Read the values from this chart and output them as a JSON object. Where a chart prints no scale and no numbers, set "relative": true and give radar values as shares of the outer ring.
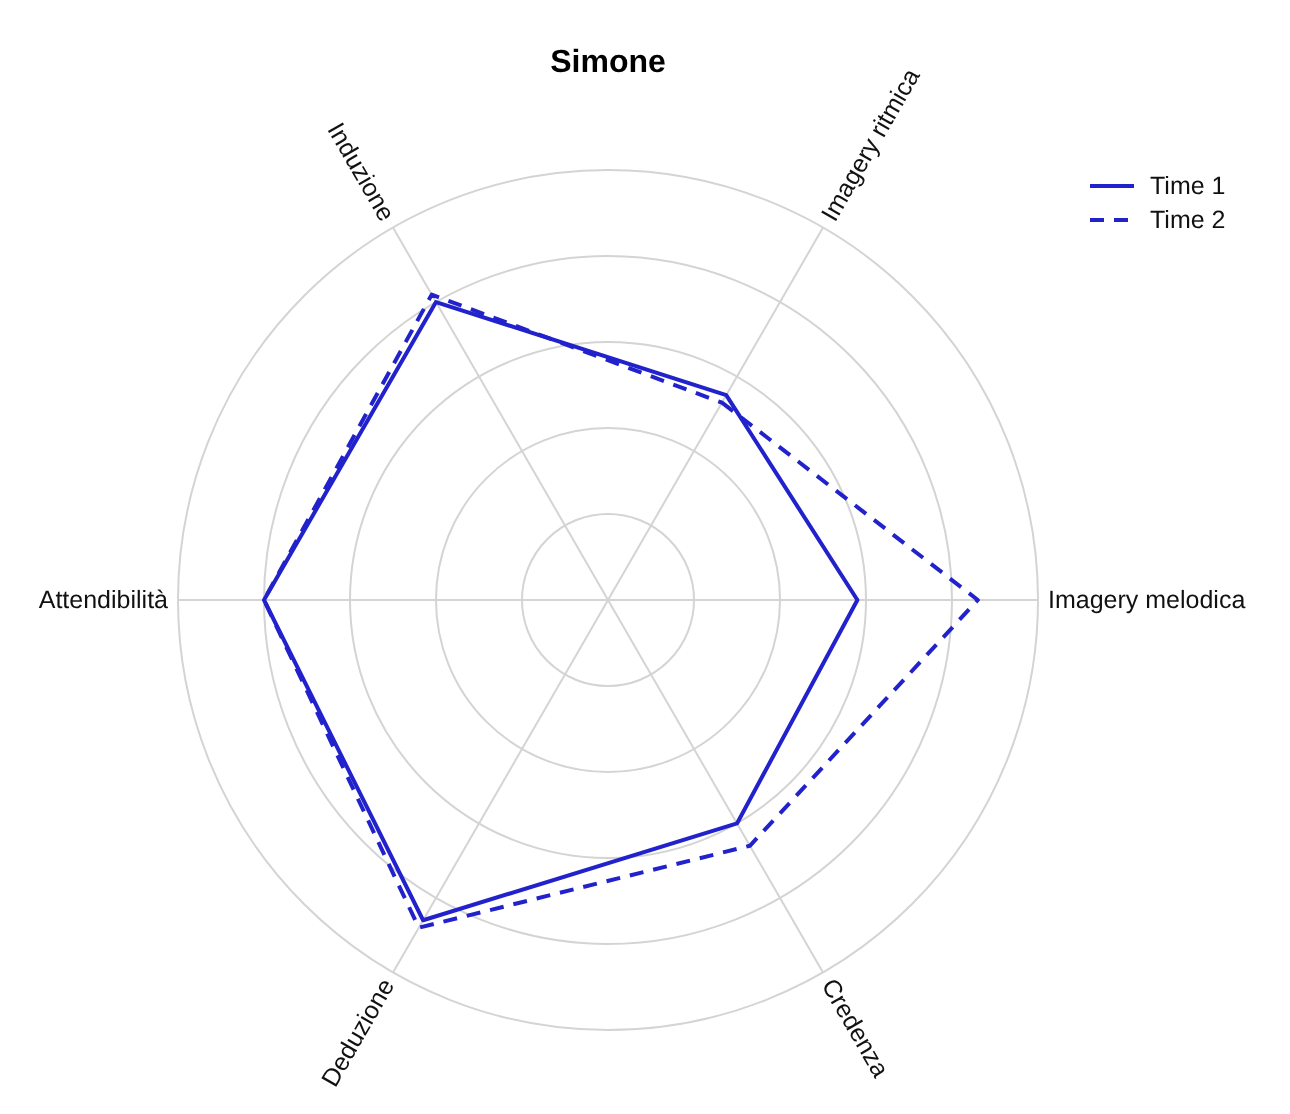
{
  "chart_data": {
    "type": "radar",
    "title": "Simone",
    "relative": true,
    "grid": true,
    "legend": "top right",
    "categories": [
      "Imagery ritmica",
      "Imagery melodica",
      "Credenza",
      "Deduzione",
      "Attendibilità",
      "Induzione"
    ],
    "series": [
      {
        "name": "Time 1",
        "color": "#2222cc",
        "line_style": "solid",
        "values": [
          0.55,
          0.58,
          0.6,
          0.86,
          0.8,
          0.8
        ]
      },
      {
        "name": "Time 2",
        "color": "#2222cc",
        "line_style": "dashed",
        "values": [
          0.53,
          0.86,
          0.66,
          0.88,
          0.8,
          0.82
        ]
      }
    ]
  }
}
